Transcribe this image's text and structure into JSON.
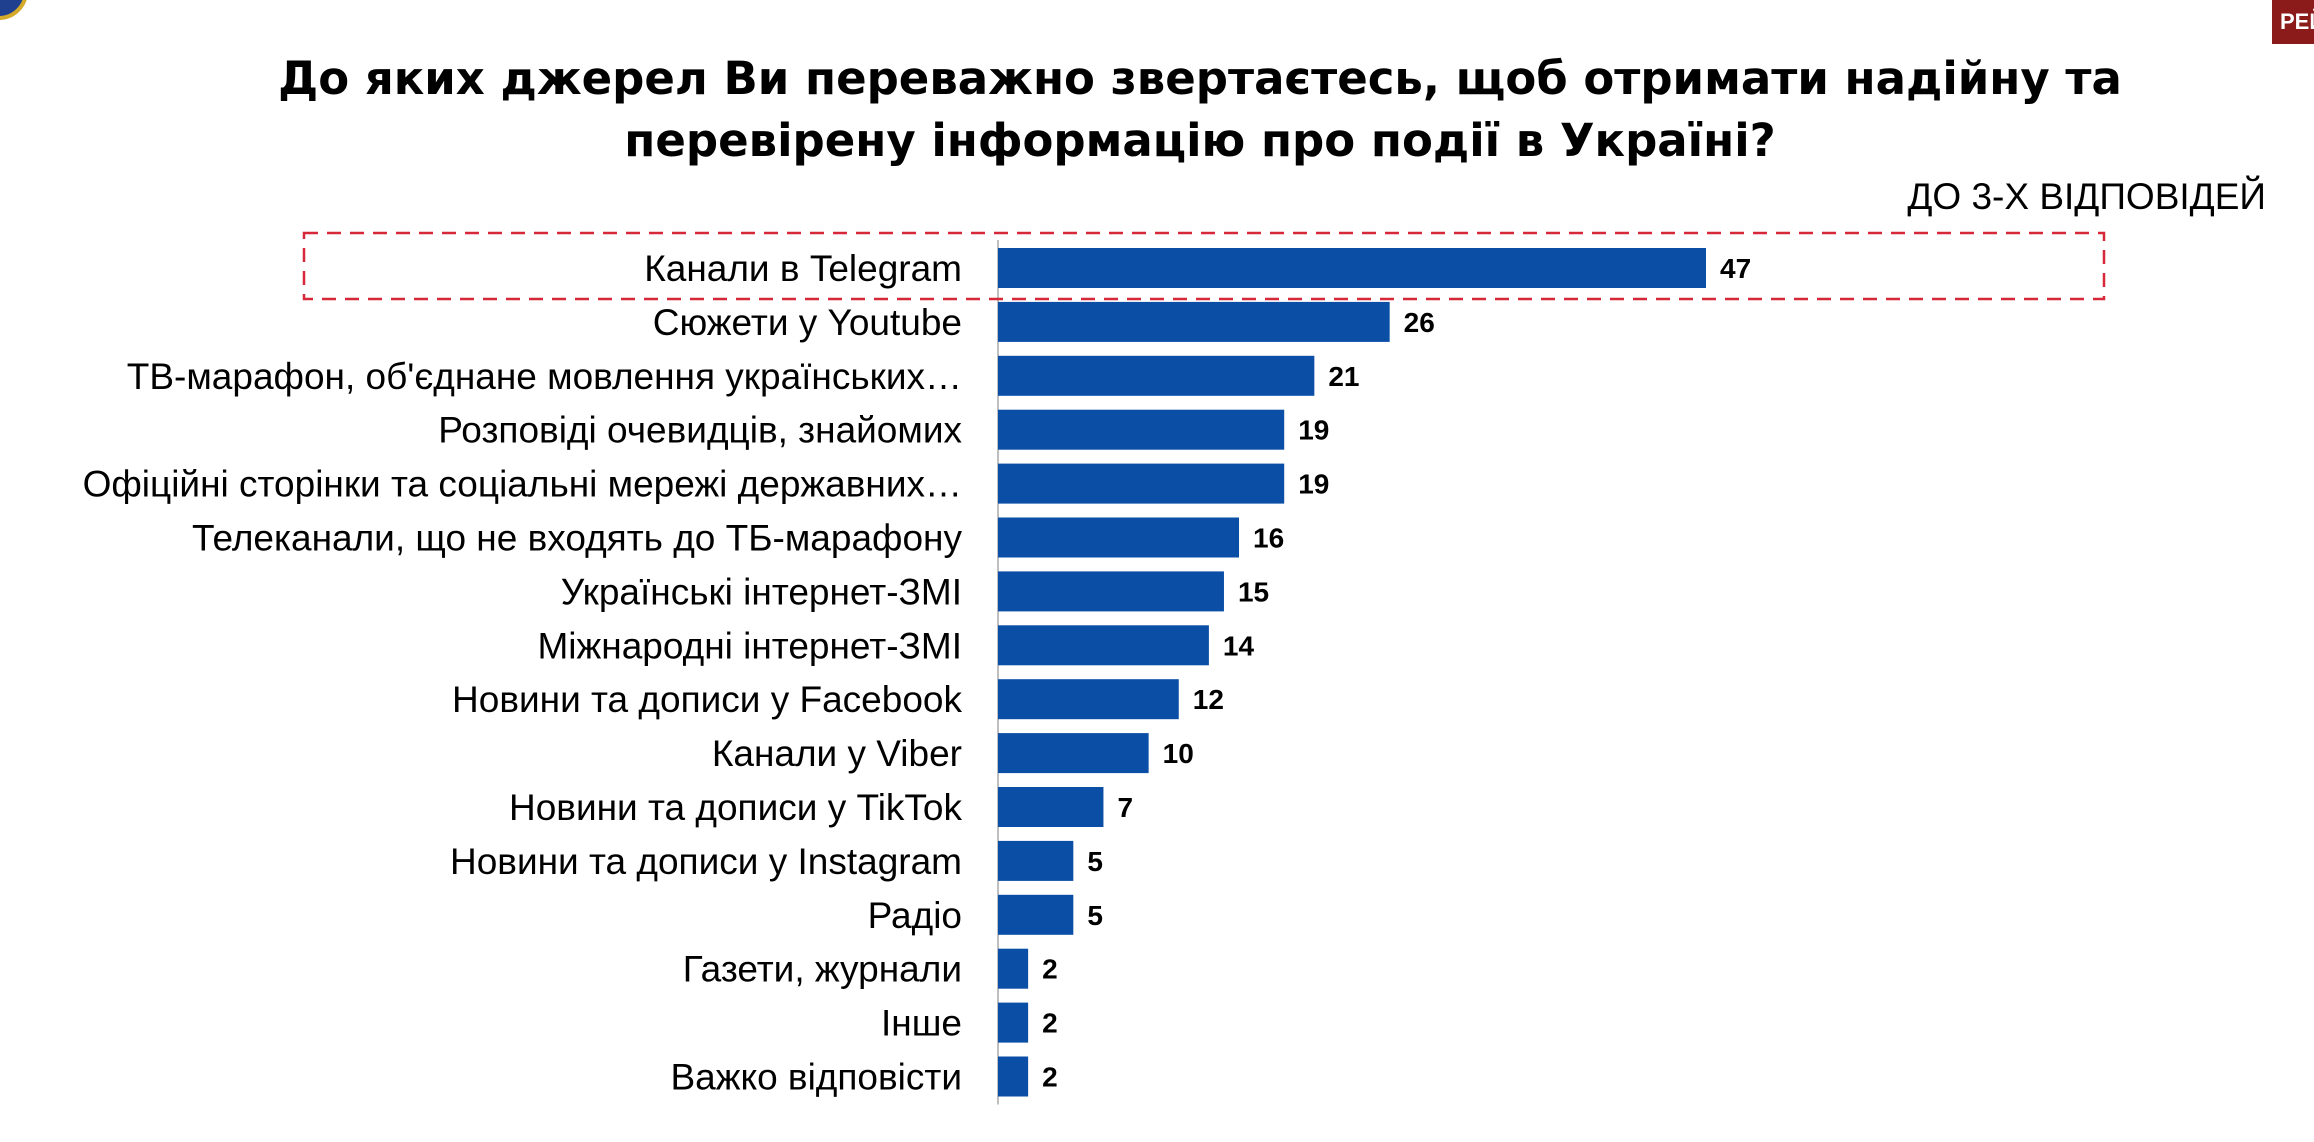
{
  "title": "До яких джерел Ви переважно звертаєтесь, щоб отримати надійну та перевірену інформацію про події в Україні?",
  "subtitle": "ДО 3-Х ВІДПОВІДЕЙ",
  "brand_text": "РЕЙ",
  "colors": {
    "bar": "#0a4ea6",
    "highlight_border": "#d62839",
    "brand_bg": "#8b1b1b"
  },
  "chart_data": {
    "type": "bar",
    "orientation": "horizontal",
    "categories": [
      "Канали в Telegram",
      "Сюжети у Youtube",
      "ТВ-марафон, об'єднане мовлення українських…",
      "Розповіді очевидців, знайомих",
      "Офіційні сторінки та соціальні мережі державних…",
      "Телеканали, що не входять до ТБ-марафону",
      "Українські інтернет-ЗМІ",
      "Міжнародні інтернет-ЗМІ",
      "Новини та дописи у Facebook",
      "Канали у Viber",
      "Новини та дописи у TikTok",
      "Новини та дописи у Instagram",
      "Радіо",
      "Газети, журнали",
      "Інше",
      "Важко відповісти"
    ],
    "values": [
      47,
      26,
      21,
      19,
      19,
      16,
      15,
      14,
      12,
      10,
      7,
      5,
      5,
      2,
      2,
      2
    ],
    "value_labels": [
      "47",
      "26",
      "21",
      "19",
      "19",
      "16",
      "15",
      "14",
      "12",
      "10",
      "7",
      "5",
      "5",
      "2",
      "2",
      "2"
    ],
    "xlim": [
      0,
      47
    ],
    "highlighted_category": "Канали в Telegram",
    "grid": false,
    "legend": "none"
  }
}
